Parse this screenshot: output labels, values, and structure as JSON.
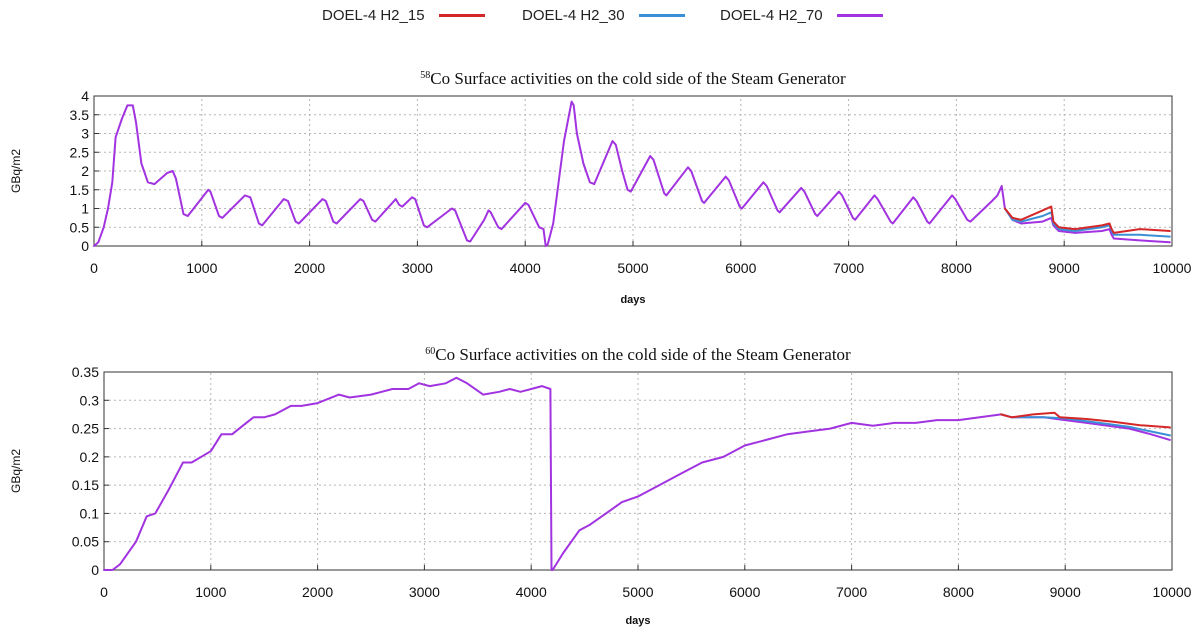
{
  "legend": [
    {
      "label": "DOEL-4 H2_15",
      "color": "#d62728"
    },
    {
      "label": "DOEL-4 H2_30",
      "color": "#3b8fd6"
    },
    {
      "label": "DOEL-4 H2_70",
      "color": "#a233e0"
    }
  ],
  "chart_data": [
    {
      "type": "line",
      "title": {
        "sup": "58",
        "text": "Co Surface  activities on the cold side  of the Steam  Generator"
      },
      "xlabel": "days",
      "ylabel": "GBq/m2",
      "xlim": [
        0,
        10000
      ],
      "ylim": [
        0,
        4
      ],
      "xticks": [
        0,
        1000,
        2000,
        3000,
        4000,
        5000,
        6000,
        7000,
        8000,
        9000,
        10000
      ],
      "yticks": [
        0,
        0.5,
        1,
        1.5,
        2,
        2.5,
        3,
        3.5,
        4
      ],
      "ytick_labels": [
        "0",
        "0.5",
        "1",
        "1.5",
        "2",
        "2.5",
        "3",
        "3.5",
        "4"
      ],
      "grid": true,
      "series": [
        {
          "name": "DOEL-4 H2_70",
          "color": "#a233e0",
          "points": [
            [
              0,
              0
            ],
            [
              40,
              0.1
            ],
            [
              90,
              0.5
            ],
            [
              130,
              1.0
            ],
            [
              170,
              1.7
            ],
            [
              200,
              2.9
            ],
            [
              260,
              3.4
            ],
            [
              310,
              3.75
            ],
            [
              360,
              3.75
            ],
            [
              390,
              3.3
            ],
            [
              440,
              2.2
            ],
            [
              500,
              1.7
            ],
            [
              560,
              1.65
            ],
            [
              680,
              1.95
            ],
            [
              730,
              2.0
            ],
            [
              760,
              1.8
            ],
            [
              830,
              0.85
            ],
            [
              870,
              0.8
            ],
            [
              1060,
              1.5
            ],
            [
              1080,
              1.45
            ],
            [
              1160,
              0.8
            ],
            [
              1190,
              0.75
            ],
            [
              1400,
              1.35
            ],
            [
              1450,
              1.3
            ],
            [
              1530,
              0.6
            ],
            [
              1560,
              0.55
            ],
            [
              1760,
              1.25
            ],
            [
              1800,
              1.2
            ],
            [
              1870,
              0.65
            ],
            [
              1900,
              0.6
            ],
            [
              2120,
              1.25
            ],
            [
              2150,
              1.2
            ],
            [
              2220,
              0.65
            ],
            [
              2250,
              0.6
            ],
            [
              2470,
              1.25
            ],
            [
              2500,
              1.2
            ],
            [
              2580,
              0.7
            ],
            [
              2610,
              0.65
            ],
            [
              2800,
              1.25
            ],
            [
              2830,
              1.1
            ],
            [
              2860,
              1.05
            ],
            [
              2950,
              1.3
            ],
            [
              2980,
              1.25
            ],
            [
              3060,
              0.55
            ],
            [
              3090,
              0.5
            ],
            [
              3320,
              1.0
            ],
            [
              3350,
              0.95
            ],
            [
              3460,
              0.15
            ],
            [
              3490,
              0.12
            ],
            [
              3620,
              0.7
            ],
            [
              3660,
              0.95
            ],
            [
              3680,
              0.9
            ],
            [
              3750,
              0.5
            ],
            [
              3780,
              0.45
            ],
            [
              4000,
              1.15
            ],
            [
              4030,
              1.1
            ],
            [
              4130,
              0.5
            ],
            [
              4170,
              0.45
            ],
            [
              4190,
              0.0
            ],
            [
              4210,
              0.05
            ],
            [
              4260,
              0.6
            ],
            [
              4360,
              2.8
            ],
            [
              4430,
              3.85
            ],
            [
              4450,
              3.75
            ],
            [
              4480,
              3.0
            ],
            [
              4540,
              2.2
            ],
            [
              4600,
              1.7
            ],
            [
              4640,
              1.65
            ],
            [
              4810,
              2.8
            ],
            [
              4840,
              2.7
            ],
            [
              4900,
              2.0
            ],
            [
              4950,
              1.5
            ],
            [
              4980,
              1.45
            ],
            [
              5160,
              2.4
            ],
            [
              5190,
              2.3
            ],
            [
              5290,
              1.4
            ],
            [
              5310,
              1.35
            ],
            [
              5510,
              2.1
            ],
            [
              5540,
              2.0
            ],
            [
              5640,
              1.2
            ],
            [
              5660,
              1.15
            ],
            [
              5860,
              1.85
            ],
            [
              5890,
              1.75
            ],
            [
              5990,
              1.05
            ],
            [
              6010,
              1.0
            ],
            [
              6210,
              1.7
            ],
            [
              6240,
              1.6
            ],
            [
              6340,
              0.95
            ],
            [
              6360,
              0.9
            ],
            [
              6560,
              1.55
            ],
            [
              6590,
              1.45
            ],
            [
              6690,
              0.85
            ],
            [
              6710,
              0.8
            ],
            [
              6910,
              1.45
            ],
            [
              6940,
              1.35
            ],
            [
              7040,
              0.75
            ],
            [
              7060,
              0.7
            ],
            [
              7240,
              1.35
            ],
            [
              7270,
              1.25
            ],
            [
              7390,
              0.65
            ],
            [
              7410,
              0.6
            ],
            [
              7600,
              1.3
            ],
            [
              7630,
              1.2
            ],
            [
              7730,
              0.65
            ],
            [
              7750,
              0.6
            ],
            [
              7960,
              1.35
            ],
            [
              7990,
              1.25
            ],
            [
              8100,
              0.7
            ],
            [
              8130,
              0.65
            ],
            [
              8330,
              1.2
            ],
            [
              8380,
              1.35
            ],
            [
              8420,
              1.6
            ],
            [
              8450,
              1.0
            ],
            [
              8520,
              0.7
            ],
            [
              8600,
              0.6
            ],
            [
              8800,
              0.65
            ],
            [
              8880,
              0.75
            ],
            [
              8900,
              0.55
            ],
            [
              8950,
              0.4
            ],
            [
              9100,
              0.35
            ],
            [
              9350,
              0.4
            ],
            [
              9420,
              0.45
            ],
            [
              9440,
              0.3
            ],
            [
              9460,
              0.2
            ],
            [
              9700,
              0.15
            ],
            [
              9980,
              0.1
            ]
          ]
        },
        {
          "name": "DOEL-4 H2_30",
          "color": "#3b8fd6",
          "points": [
            [
              8450,
              1.0
            ],
            [
              8520,
              0.7
            ],
            [
              8600,
              0.65
            ],
            [
              8800,
              0.8
            ],
            [
              8880,
              0.9
            ],
            [
              8900,
              0.6
            ],
            [
              8950,
              0.45
            ],
            [
              9100,
              0.4
            ],
            [
              9350,
              0.5
            ],
            [
              9420,
              0.55
            ],
            [
              9440,
              0.4
            ],
            [
              9460,
              0.3
            ],
            [
              9700,
              0.3
            ],
            [
              9980,
              0.25
            ]
          ]
        },
        {
          "name": "DOEL-4 H2_15",
          "color": "#d62728",
          "points": [
            [
              8450,
              1.0
            ],
            [
              8520,
              0.75
            ],
            [
              8600,
              0.7
            ],
            [
              8800,
              0.95
            ],
            [
              8880,
              1.05
            ],
            [
              8900,
              0.65
            ],
            [
              8950,
              0.5
            ],
            [
              9100,
              0.45
            ],
            [
              9350,
              0.55
            ],
            [
              9420,
              0.6
            ],
            [
              9440,
              0.45
            ],
            [
              9460,
              0.35
            ],
            [
              9700,
              0.45
            ],
            [
              9980,
              0.4
            ]
          ]
        }
      ]
    },
    {
      "type": "line",
      "title": {
        "sup": "60",
        "text": "Co Surface  activities on the cold side  of the Steam  Generator"
      },
      "xlabel": "days",
      "ylabel": "GBq/m2",
      "xlim": [
        0,
        10000
      ],
      "ylim": [
        0,
        0.35
      ],
      "xticks": [
        0,
        1000,
        2000,
        3000,
        4000,
        5000,
        6000,
        7000,
        8000,
        9000,
        10000
      ],
      "yticks": [
        0,
        0.05,
        0.1,
        0.15,
        0.2,
        0.25,
        0.3,
        0.35
      ],
      "ytick_labels": [
        "0",
        "0.05",
        "0.1",
        "0.15",
        "0.2",
        "0.25",
        "0.3",
        "0.35"
      ],
      "grid": true,
      "series": [
        {
          "name": "DOEL-4 H2_70",
          "color": "#a233e0",
          "points": [
            [
              0,
              0
            ],
            [
              80,
              0.0
            ],
            [
              150,
              0.01
            ],
            [
              300,
              0.05
            ],
            [
              400,
              0.095
            ],
            [
              480,
              0.1
            ],
            [
              600,
              0.14
            ],
            [
              740,
              0.19
            ],
            [
              820,
              0.19
            ],
            [
              1000,
              0.21
            ],
            [
              1100,
              0.24
            ],
            [
              1200,
              0.24
            ],
            [
              1300,
              0.255
            ],
            [
              1400,
              0.27
            ],
            [
              1500,
              0.27
            ],
            [
              1600,
              0.275
            ],
            [
              1750,
              0.29
            ],
            [
              1850,
              0.29
            ],
            [
              2000,
              0.295
            ],
            [
              2200,
              0.31
            ],
            [
              2300,
              0.305
            ],
            [
              2500,
              0.31
            ],
            [
              2700,
              0.32
            ],
            [
              2850,
              0.32
            ],
            [
              2950,
              0.33
            ],
            [
              3050,
              0.325
            ],
            [
              3200,
              0.33
            ],
            [
              3300,
              0.34
            ],
            [
              3400,
              0.33
            ],
            [
              3550,
              0.31
            ],
            [
              3700,
              0.315
            ],
            [
              3800,
              0.32
            ],
            [
              3900,
              0.315
            ],
            [
              4000,
              0.32
            ],
            [
              4100,
              0.325
            ],
            [
              4180,
              0.32
            ],
            [
              4190,
              0.0
            ],
            [
              4200,
              0.0
            ],
            [
              4300,
              0.03
            ],
            [
              4450,
              0.07
            ],
            [
              4550,
              0.08
            ],
            [
              4700,
              0.1
            ],
            [
              4850,
              0.12
            ],
            [
              5000,
              0.13
            ],
            [
              5200,
              0.15
            ],
            [
              5400,
              0.17
            ],
            [
              5600,
              0.19
            ],
            [
              5800,
              0.2
            ],
            [
              6000,
              0.22
            ],
            [
              6200,
              0.23
            ],
            [
              6400,
              0.24
            ],
            [
              6600,
              0.245
            ],
            [
              6800,
              0.25
            ],
            [
              7000,
              0.26
            ],
            [
              7200,
              0.255
            ],
            [
              7400,
              0.26
            ],
            [
              7600,
              0.26
            ],
            [
              7800,
              0.265
            ],
            [
              8000,
              0.265
            ],
            [
              8200,
              0.27
            ],
            [
              8400,
              0.275
            ],
            [
              8500,
              0.27
            ],
            [
              8800,
              0.27
            ],
            [
              9000,
              0.265
            ],
            [
              9200,
              0.26
            ],
            [
              9400,
              0.255
            ],
            [
              9600,
              0.25
            ],
            [
              9800,
              0.24
            ],
            [
              9980,
              0.23
            ]
          ]
        },
        {
          "name": "DOEL-4 H2_30",
          "color": "#3b8fd6",
          "points": [
            [
              8400,
              0.275
            ],
            [
              8500,
              0.27
            ],
            [
              8800,
              0.27
            ],
            [
              9000,
              0.268
            ],
            [
              9200,
              0.263
            ],
            [
              9400,
              0.258
            ],
            [
              9600,
              0.253
            ],
            [
              9800,
              0.245
            ],
            [
              9980,
              0.238
            ]
          ]
        },
        {
          "name": "DOEL-4 H2_15",
          "color": "#d62728",
          "points": [
            [
              8400,
              0.275
            ],
            [
              8500,
              0.27
            ],
            [
              8700,
              0.275
            ],
            [
              8900,
              0.278
            ],
            [
              8950,
              0.27
            ],
            [
              9200,
              0.267
            ],
            [
              9450,
              0.262
            ],
            [
              9700,
              0.256
            ],
            [
              9980,
              0.252
            ]
          ]
        }
      ]
    }
  ]
}
